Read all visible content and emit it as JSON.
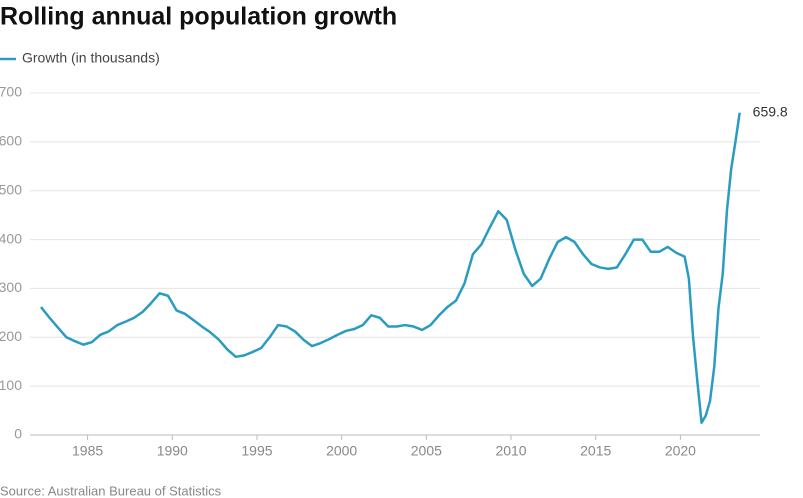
{
  "chart_data": {
    "type": "line",
    "title": "Rolling annual population growth",
    "source": "Source: Australian Bureau of Statistics",
    "x": [
      1982.25,
      1982.75,
      1983.25,
      1983.75,
      1984.25,
      1984.75,
      1985.25,
      1985.75,
      1986.25,
      1986.75,
      1987.25,
      1987.75,
      1988.25,
      1988.75,
      1989.25,
      1989.75,
      1990.25,
      1990.75,
      1991.25,
      1991.75,
      1992.25,
      1992.75,
      1993.25,
      1993.75,
      1994.25,
      1994.75,
      1995.25,
      1995.75,
      1996.25,
      1996.75,
      1997.25,
      1997.75,
      1998.25,
      1998.75,
      1999.25,
      1999.75,
      2000.25,
      2000.75,
      2001.25,
      2001.75,
      2002.25,
      2002.75,
      2003.25,
      2003.75,
      2004.25,
      2004.75,
      2005.25,
      2005.75,
      2006.25,
      2006.75,
      2007.25,
      2007.75,
      2008.25,
      2008.75,
      2009.25,
      2009.75,
      2010.25,
      2010.75,
      2011.25,
      2011.75,
      2012.25,
      2012.75,
      2013.25,
      2013.75,
      2014.25,
      2014.75,
      2015.25,
      2015.75,
      2016.25,
      2016.75,
      2017.25,
      2017.75,
      2018.25,
      2018.75,
      2019.25,
      2019.75,
      2020.25,
      2020.5,
      2020.75,
      2021.0,
      2021.25,
      2021.5,
      2021.75,
      2022.0,
      2022.25,
      2022.5,
      2022.75,
      2023.0,
      2023.25,
      2023.5
    ],
    "series": [
      {
        "name": "Growth (in thousands)",
        "color": "#2a9cc0",
        "values": [
          262,
          240,
          220,
          200,
          192,
          185,
          190,
          205,
          212,
          225,
          232,
          240,
          252,
          270,
          290,
          285,
          255,
          248,
          235,
          222,
          210,
          195,
          175,
          160,
          163,
          170,
          178,
          200,
          225,
          222,
          212,
          195,
          182,
          188,
          196,
          205,
          213,
          217,
          225,
          245,
          240,
          222,
          222,
          225,
          222,
          215,
          225,
          245,
          262,
          275,
          310,
          370,
          390,
          425,
          458,
          440,
          380,
          330,
          305,
          320,
          360,
          395,
          405,
          395,
          370,
          350,
          343,
          340,
          343,
          370,
          400,
          400,
          375,
          375,
          385,
          373,
          365,
          320,
          200,
          110,
          25,
          40,
          70,
          140,
          260,
          330,
          460,
          545,
          600,
          659.8
        ]
      }
    ],
    "xlim": [
      1981.6,
      2024.7
    ],
    "xticks": [
      1985,
      1990,
      1995,
      2000,
      2005,
      2010,
      2015,
      2020
    ],
    "ylim": [
      0,
      700
    ],
    "yticks": [
      0,
      100,
      200,
      300,
      400,
      500,
      600,
      700
    ],
    "grid": true
  }
}
